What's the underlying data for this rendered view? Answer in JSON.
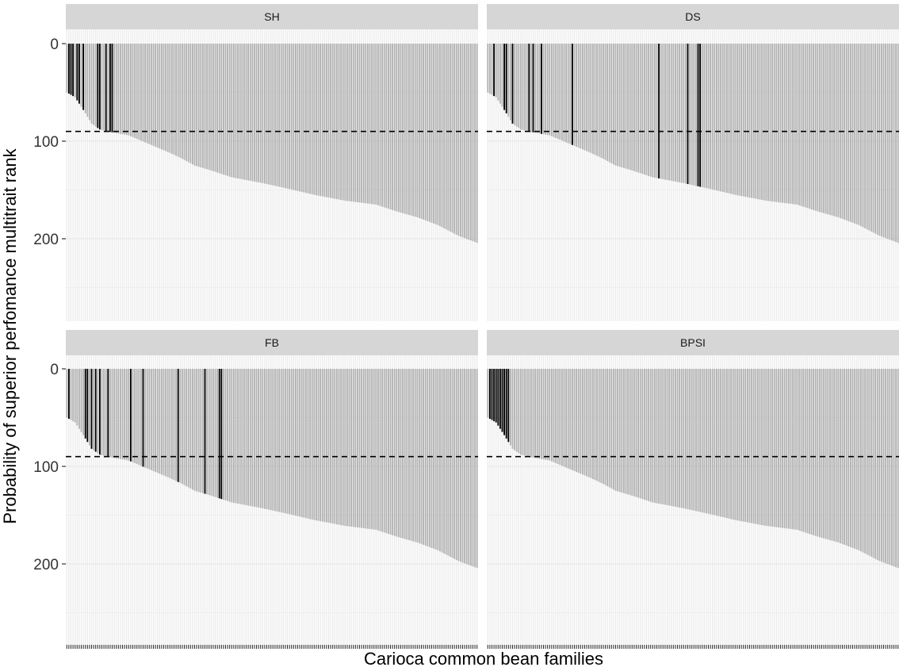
{
  "chart_data": {
    "type": "bar",
    "ylabel": "Probability of superior perfomance multitrait rank",
    "xlabel": "Carioca common bean families",
    "n_families": 200,
    "ylim": [
      0,
      280
    ],
    "y_reversed": true,
    "yticks": [
      0,
      100,
      200
    ],
    "threshold": 90,
    "grid": true,
    "colors": {
      "bar": "#b2b2b2",
      "highlight": "#000000",
      "strip_bg": "#d6d6d6",
      "grid": "#ebebeb"
    },
    "sorted_bar_profile": [
      [
        0,
        50
      ],
      [
        4,
        55
      ],
      [
        8,
        68
      ],
      [
        12,
        82
      ],
      [
        16,
        88
      ],
      [
        22,
        91
      ],
      [
        30,
        94
      ],
      [
        40,
        103
      ],
      [
        50,
        112
      ],
      [
        56,
        118
      ],
      [
        62,
        125
      ],
      [
        70,
        130
      ],
      [
        80,
        137
      ],
      [
        95,
        143
      ],
      [
        110,
        150
      ],
      [
        120,
        155
      ],
      [
        135,
        161
      ],
      [
        150,
        165
      ],
      [
        160,
        172
      ],
      [
        170,
        178
      ],
      [
        180,
        186
      ],
      [
        190,
        197
      ],
      [
        200,
        205
      ],
      [
        215,
        215
      ],
      [
        225,
        225
      ],
      [
        235,
        232
      ],
      [
        245,
        242
      ],
      [
        255,
        256
      ],
      [
        260,
        262
      ],
      [
        270,
        270
      ]
    ],
    "panels": [
      {
        "label": "SH",
        "highlighted_families": [
          1,
          2,
          3,
          5,
          6,
          8,
          15,
          16,
          19,
          21,
          22
        ]
      },
      {
        "label": "DS",
        "highlighted_families": [
          3,
          8,
          9,
          12,
          20,
          22,
          26,
          41,
          83,
          97,
          102,
          103
        ]
      },
      {
        "label": "FB",
        "highlighted_families": [
          1,
          9,
          10,
          12,
          14,
          16,
          20,
          31,
          37,
          54,
          67,
          74,
          75
        ]
      },
      {
        "label": "BPSI",
        "highlighted_families": [
          1,
          2,
          3,
          4,
          5,
          6,
          7,
          8,
          9,
          10
        ]
      }
    ]
  }
}
